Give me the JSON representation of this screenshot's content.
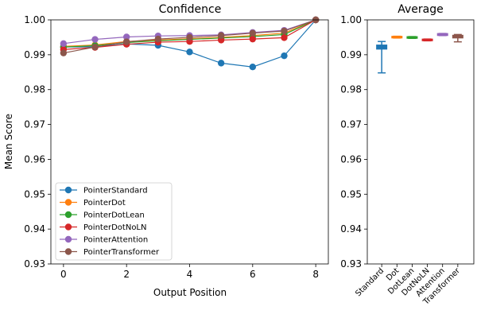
{
  "chart_data": [
    {
      "type": "line",
      "title": "Confidence",
      "xlabel": "Output Position",
      "ylabel": "Mean Score",
      "xlim": [
        -0.4,
        8.4
      ],
      "ylim": [
        0.93,
        1.0
      ],
      "xticks": [
        "0",
        "2",
        "4",
        "6",
        "8"
      ],
      "yticks": [
        "0.93",
        "0.94",
        "0.95",
        "0.96",
        "0.97",
        "0.98",
        "0.99",
        "1.00"
      ],
      "grid": false,
      "legend_position": "lower-left",
      "x": [
        0,
        1,
        2,
        3,
        4,
        5,
        6,
        7,
        8
      ],
      "series": [
        {
          "name": "PointerStandard",
          "color": "#1f77b4",
          "values": [
            0.9922,
            0.9923,
            0.9931,
            0.9927,
            0.9908,
            0.9876,
            0.9865,
            0.9897,
            1.0
          ]
        },
        {
          "name": "PointerDot",
          "color": "#ff7f0e",
          "values": [
            0.9924,
            0.9928,
            0.9938,
            0.9942,
            0.9946,
            0.995,
            0.9955,
            0.9962,
            1.0
          ]
        },
        {
          "name": "PointerDotLean",
          "color": "#2ca02c",
          "values": [
            0.9922,
            0.9926,
            0.9935,
            0.994,
            0.9944,
            0.9948,
            0.9952,
            0.9958,
            1.0
          ]
        },
        {
          "name": "PointerDotNoLN",
          "color": "#d62728",
          "values": [
            0.9915,
            0.9921,
            0.993,
            0.9936,
            0.9938,
            0.9942,
            0.9945,
            0.9949,
            1.0
          ]
        },
        {
          "name": "PointerAttention",
          "color": "#9467bd",
          "values": [
            0.9932,
            0.9944,
            0.9951,
            0.9954,
            0.9955,
            0.9957,
            0.9964,
            0.997,
            1.0
          ]
        },
        {
          "name": "PointerTransformer",
          "color": "#8c564b",
          "values": [
            0.9905,
            0.9922,
            0.9937,
            0.9945,
            0.995,
            0.9955,
            0.9962,
            0.9968,
            1.0
          ]
        }
      ]
    },
    {
      "type": "box",
      "title": "Average",
      "ylim": [
        0.93,
        1.0
      ],
      "yticks": [
        "0.93",
        "0.94",
        "0.95",
        "0.96",
        "0.97",
        "0.98",
        "0.99",
        "1.00"
      ],
      "grid": false,
      "categories": [
        "Standard",
        "Dot",
        "DotLean",
        "DotNoLN",
        "Attention",
        "Transformer"
      ],
      "boxes": [
        {
          "color": "#1f77b4",
          "whislo": 0.9848,
          "q1": 0.9916,
          "med": 0.9922,
          "q3": 0.9928,
          "whishi": 0.9938
        },
        {
          "color": "#ff7f0e",
          "whislo": 0.9948,
          "q1": 0.9948,
          "med": 0.9951,
          "q3": 0.9953,
          "whishi": 0.9953
        },
        {
          "color": "#2ca02c",
          "whislo": 0.9947,
          "q1": 0.9947,
          "med": 0.995,
          "q3": 0.9952,
          "whishi": 0.9952
        },
        {
          "color": "#d62728",
          "whislo": 0.994,
          "q1": 0.994,
          "med": 0.9943,
          "q3": 0.9945,
          "whishi": 0.9945
        },
        {
          "color": "#9467bd",
          "whislo": 0.9955,
          "q1": 0.9955,
          "med": 0.9958,
          "q3": 0.9961,
          "whishi": 0.9961
        },
        {
          "color": "#8c564b",
          "whislo": 0.9937,
          "q1": 0.9948,
          "med": 0.9953,
          "q3": 0.9956,
          "whishi": 0.9958
        }
      ]
    }
  ]
}
